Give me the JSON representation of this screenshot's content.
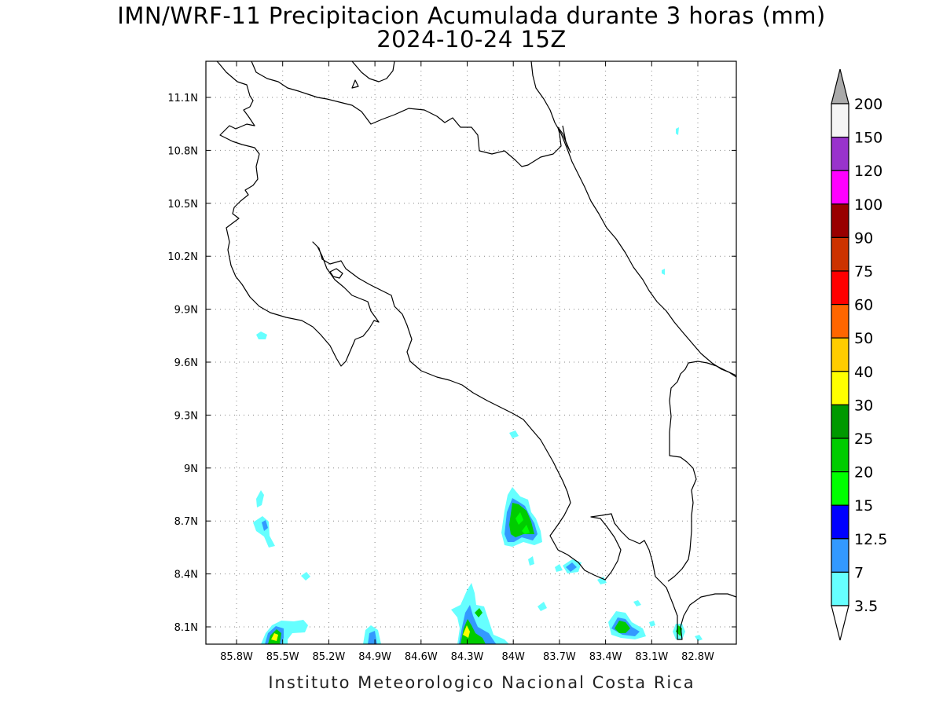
{
  "title": {
    "line1": "IMN/WRF-11 Precipitacion Acumulada durante 3 horas (mm)",
    "line2": "2024-10-24 15Z"
  },
  "axes": {
    "lon_labels": [
      "85.8W",
      "85.5W",
      "85.2W",
      "84.9W",
      "84.6W",
      "84.3W",
      "84W",
      "83.7W",
      "83.4W",
      "83.1W",
      "82.8W"
    ],
    "lat_labels": [
      "11.1N",
      "10.8N",
      "10.5N",
      "10.2N",
      "9.9N",
      "9.6N",
      "9.3N",
      "9N",
      "8.7N",
      "8.4N",
      "8.1N"
    ]
  },
  "legend": {
    "levels": [
      {
        "label": "200",
        "color": "#f5f5f5"
      },
      {
        "label": "150",
        "color": "#9933cc"
      },
      {
        "label": "120",
        "color": "#ff00ff"
      },
      {
        "label": "100",
        "color": "#990000"
      },
      {
        "label": "90",
        "color": "#cc3300"
      },
      {
        "label": "75",
        "color": "#ff0000"
      },
      {
        "label": "60",
        "color": "#ff6600"
      },
      {
        "label": "50",
        "color": "#ffcc00"
      },
      {
        "label": "40",
        "color": "#ffff00"
      },
      {
        "label": "30",
        "color": "#009900"
      },
      {
        "label": "25",
        "color": "#00cc00"
      },
      {
        "label": "20",
        "color": "#00ff00"
      },
      {
        "label": "15",
        "color": "#0000ff"
      },
      {
        "label": "12.5",
        "color": "#3399ff"
      },
      {
        "label": "7",
        "color": "#66ffff"
      },
      {
        "label": "3.5",
        "color": "#ffffff"
      }
    ],
    "top_arrow_color": "#aaaaaa"
  },
  "footer": "Instituto Meteorologico Nacional Costa Rica"
}
